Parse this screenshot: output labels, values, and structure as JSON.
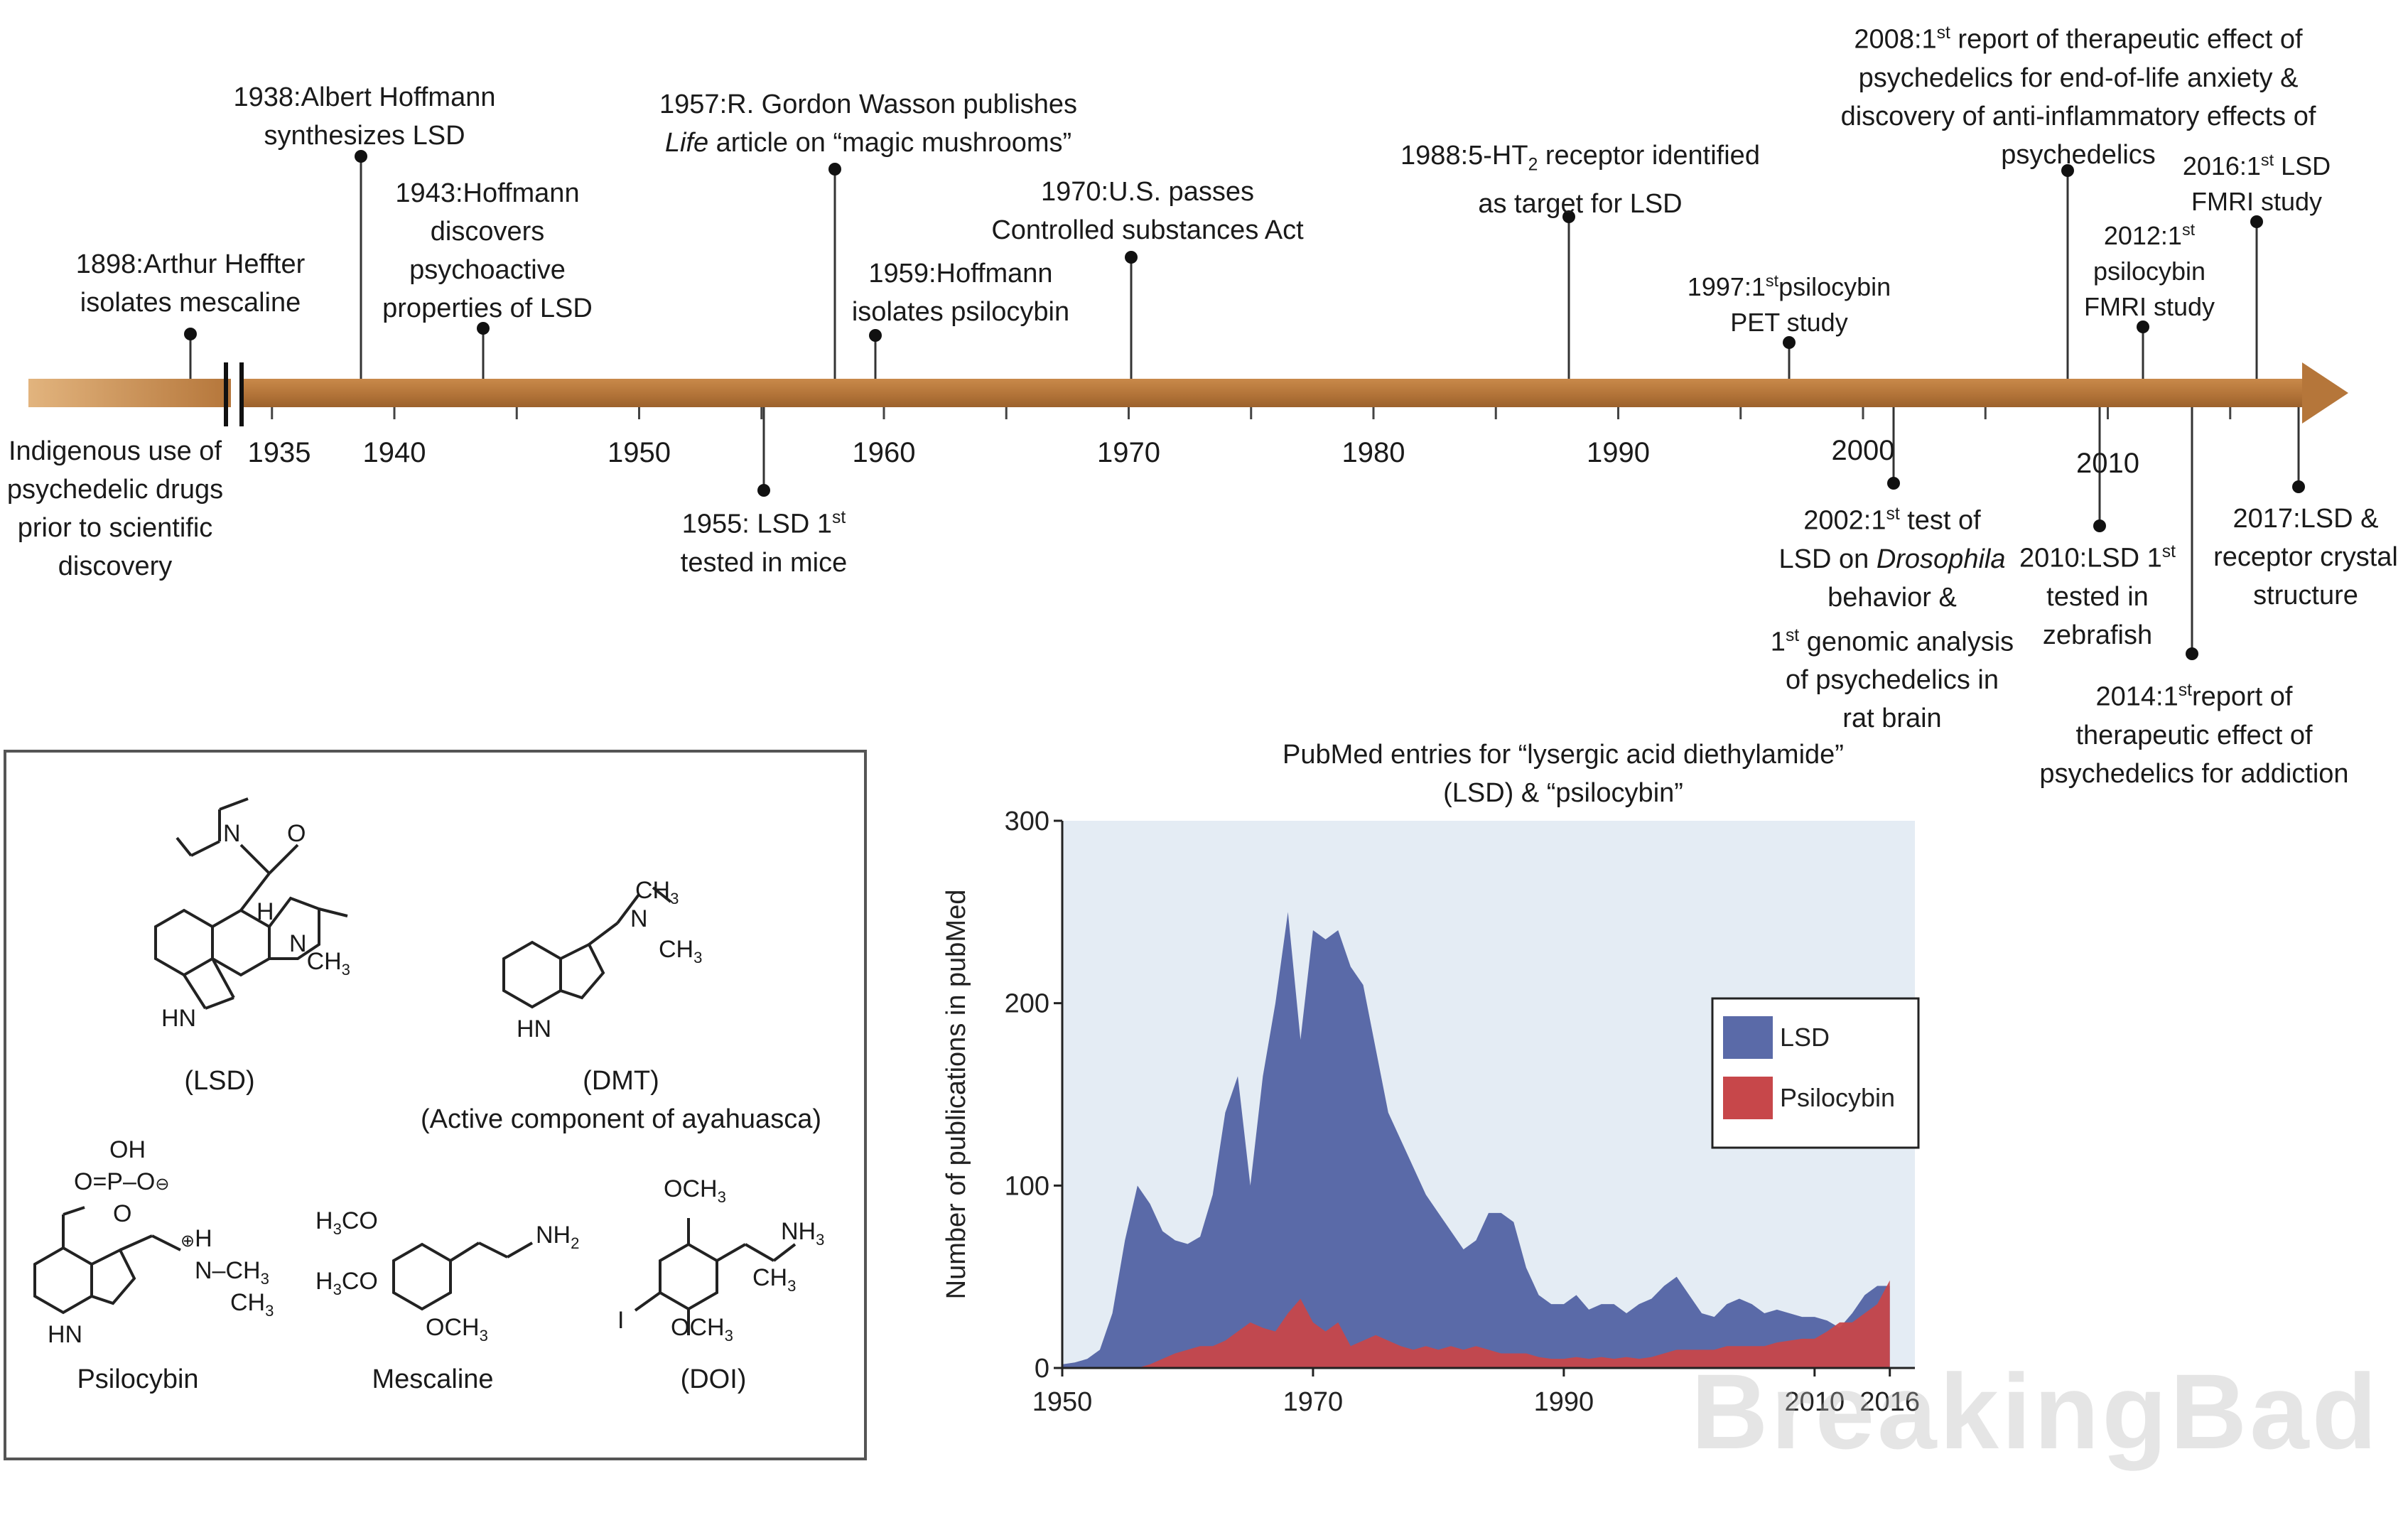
{
  "timeline": {
    "axis_years": [
      "1935",
      "1940",
      "1950",
      "1960",
      "1970",
      "1980",
      "1990",
      "2000",
      "2010"
    ],
    "left_label": [
      "Indigenous use of",
      "psychedelic drugs",
      "prior to scientific",
      "discovery"
    ],
    "events_above": [
      {
        "id": "e1898",
        "lines": [
          "1898:Arthur Heffter",
          "isolates mescaline"
        ]
      },
      {
        "id": "e1938",
        "lines": [
          "1938:Albert Hoffmann",
          "synthesizes LSD"
        ]
      },
      {
        "id": "e1943",
        "lines": [
          "1943:Hoffmann",
          "discovers",
          "psychoactive",
          "properties of LSD"
        ]
      },
      {
        "id": "e1957a",
        "lines": [
          "1957:R. Gordon Wasson publishes"
        ]
      },
      {
        "id": "e1957b",
        "lines": [
          "Life article on “magic mushrooms”"
        ]
      },
      {
        "id": "e1959",
        "lines": [
          "1959:Hoffmann",
          "isolates psilocybin"
        ]
      },
      {
        "id": "e1970",
        "lines": [
          "1970:U.S. passes",
          "Controlled substances Act"
        ]
      },
      {
        "id": "e1988",
        "lines": [
          "1988:5-HT2 receptor identified",
          "as target for LSD"
        ]
      },
      {
        "id": "e1997",
        "lines": [
          "1997:1st psilocybin",
          "PET study"
        ]
      },
      {
        "id": "e2008",
        "lines": [
          "2008:1st report of therapeutic effect of",
          "psychedelics for end-of-life anxiety &",
          "discovery of anti-inflammatory effects of",
          "psychedelics"
        ]
      },
      {
        "id": "e2012",
        "lines": [
          "2012:1st",
          "psilocybin",
          "FMRI study"
        ]
      },
      {
        "id": "e2016",
        "lines": [
          "2016:1st LSD",
          "FMRI study"
        ]
      }
    ],
    "events_below": [
      {
        "id": "e1955",
        "lines": [
          "1955: LSD 1st",
          "tested in mice"
        ]
      },
      {
        "id": "e2002",
        "lines": [
          "2002:1st test of",
          "LSD on Drosophila",
          "behavior &",
          "1st genomic analysis",
          "of psychedelics in",
          "rat brain"
        ]
      },
      {
        "id": "e2010",
        "lines": [
          "2010:LSD 1st",
          "tested in",
          "zebrafish"
        ]
      },
      {
        "id": "e2014",
        "lines": [
          "2014:1st report of",
          "therapeutic effect of",
          "psychedelics for addiction"
        ]
      },
      {
        "id": "e2017",
        "lines": [
          "2017:LSD &",
          "receptor crystal",
          "structure"
        ]
      }
    ],
    "colors": {
      "arrow": "#b5763a",
      "arrow_light": "#d9a872"
    }
  },
  "molecules": {
    "labels": {
      "lsd": "(LSD)",
      "dmt": "(DMT)",
      "dmt_note": "(Active component of ayahuasca)",
      "psilocybin": "Psilocybin",
      "mescaline": "Mescaline",
      "doi": "(DOI)"
    }
  },
  "chart_data": {
    "type": "area",
    "title": "PubMed entries for “lysergic acid diethylamide” (LSD) & “psilocybin”",
    "title_lines": [
      "PubMed entries for “lysergic acid diethylamide”",
      "(LSD) & “psilocybin”"
    ],
    "ylabel": "Number of publications in pubMed",
    "xlabel": "",
    "xlim": [
      1950,
      2017
    ],
    "ylim": [
      0,
      300
    ],
    "x_ticks": [
      "1950",
      "1970",
      "1990",
      "2010",
      "2016"
    ],
    "y_ticks": [
      "0",
      "100",
      "200",
      "300"
    ],
    "legend": {
      "placement": "right",
      "entries": [
        "LSD",
        "Psilocybin"
      ]
    },
    "colors": {
      "LSD": "#5a6aa8",
      "Psilocybin": "#c7474a",
      "background": "#e4ecf4"
    },
    "x": [
      1950,
      1951,
      1952,
      1953,
      1954,
      1955,
      1956,
      1957,
      1958,
      1959,
      1960,
      1961,
      1962,
      1963,
      1964,
      1965,
      1966,
      1967,
      1968,
      1969,
      1970,
      1971,
      1972,
      1973,
      1974,
      1975,
      1976,
      1977,
      1978,
      1979,
      1980,
      1981,
      1982,
      1983,
      1984,
      1985,
      1986,
      1987,
      1988,
      1989,
      1990,
      1991,
      1992,
      1993,
      1994,
      1995,
      1996,
      1997,
      1998,
      1999,
      2000,
      2001,
      2002,
      2003,
      2004,
      2005,
      2006,
      2007,
      2008,
      2009,
      2010,
      2011,
      2012,
      2013,
      2014,
      2015,
      2016
    ],
    "series": [
      {
        "name": "LSD",
        "values": [
          2,
          3,
          5,
          10,
          30,
          70,
          100,
          90,
          75,
          70,
          68,
          72,
          95,
          140,
          160,
          100,
          160,
          200,
          250,
          180,
          240,
          235,
          240,
          220,
          210,
          175,
          140,
          125,
          110,
          95,
          85,
          75,
          65,
          70,
          85,
          85,
          80,
          55,
          40,
          35,
          35,
          40,
          32,
          35,
          35,
          30,
          35,
          38,
          45,
          50,
          40,
          30,
          28,
          35,
          38,
          35,
          30,
          32,
          30,
          28,
          28,
          26,
          22,
          30,
          40,
          45,
          45
        ]
      },
      {
        "name": "Psilocybin",
        "values": [
          0,
          0,
          0,
          0,
          0,
          0,
          0,
          2,
          5,
          8,
          10,
          12,
          12,
          15,
          20,
          25,
          22,
          20,
          30,
          38,
          25,
          20,
          25,
          12,
          15,
          18,
          15,
          12,
          10,
          12,
          10,
          12,
          10,
          12,
          10,
          8,
          8,
          8,
          6,
          5,
          5,
          6,
          5,
          6,
          5,
          6,
          5,
          6,
          8,
          10,
          10,
          10,
          10,
          12,
          12,
          12,
          12,
          14,
          15,
          16,
          16,
          20,
          25,
          25,
          30,
          35,
          48
        ]
      }
    ]
  },
  "watermark": "BreakingBad"
}
